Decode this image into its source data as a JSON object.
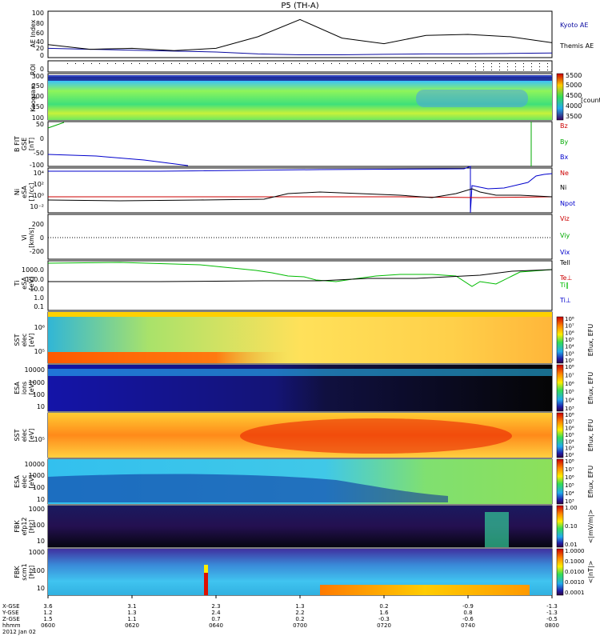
{
  "title": "P5 (TH-A)",
  "colors": {
    "kyoto": "#0a0aa0",
    "themis": "#000000",
    "bz": "#cc0000",
    "by": "#00aa00",
    "bx": "#0000cc",
    "ne": "#cc0000",
    "ni": "#000000",
    "npot": "#0000cc"
  },
  "panels": {
    "ae": {
      "ylabel": "AE Index",
      "ticks": [
        "100",
        "80",
        "60",
        "40",
        "20",
        "0"
      ],
      "legend": [
        "Kyoto AE",
        "Themis AE"
      ]
    },
    "roi": {
      "ylabel": "ROI",
      "ticks": [
        "0"
      ]
    },
    "keogram": {
      "ylabel": "Keogram",
      "ticks": [
        "300",
        "250",
        "200",
        "150",
        "100"
      ],
      "cbar_ticks": [
        "5500",
        "5000",
        "4500",
        "4000",
        "3500"
      ],
      "cbar_label": "[counts]"
    },
    "bfit": {
      "ylabel": "B FIT GSE [nT]",
      "ylabel_lines": [
        "B FIT",
        "GSE",
        "[nT]"
      ],
      "ticks": [
        "50",
        "0",
        "-50",
        "-100"
      ],
      "legend": [
        "Bz",
        "By",
        "Bx"
      ]
    },
    "ni": {
      "ylabel": "Ni eSA [1/cc]",
      "ylabel_lines": [
        "Ni",
        "eSA",
        "[1/cc]"
      ],
      "ticks": [
        "10⁴",
        "10²",
        "10⁰",
        "10⁻²"
      ],
      "legend": [
        "Ne",
        "Ni",
        "Npot"
      ]
    },
    "vi": {
      "ylabel": "Vi [km/s]",
      "ylabel_lines": [
        "Vi",
        "[km/s]"
      ],
      "ticks": [
        "200",
        "0",
        "-200"
      ],
      "legend": [
        "Viz",
        "Viy",
        "Vix"
      ]
    },
    "ti": {
      "ylabel": "Ti eSA [eV]",
      "ylabel_lines": [
        "Ti",
        "eSA",
        "[eV]"
      ],
      "ticks": [
        "1000.0",
        "100.0",
        "10.0",
        "1.0",
        "0.1"
      ],
      "legend": [
        "Tell",
        "Te⊥",
        "Ti‖",
        "Ti⊥"
      ]
    },
    "sst_e": {
      "ylabel": "SST elec [eV]",
      "ylabel_lines": [
        "SST",
        "elec",
        "[eV]"
      ],
      "ticks": [
        "10⁶",
        "10⁵"
      ],
      "cbar_label": "Eflux, EFU",
      "cbar_ticks": [
        "10⁸",
        "10⁷",
        "10⁶",
        "10⁵",
        "10⁴",
        "10³",
        "10²"
      ]
    },
    "esa_i": {
      "ylabel": "ESA ions [eV]",
      "ylabel_lines": [
        "ESA",
        "ions",
        "[eV]"
      ],
      "ticks": [
        "10000",
        "1000",
        "100",
        "10"
      ],
      "cbar_label": "Eflux, EFU",
      "cbar_ticks": [
        "10⁸",
        "10⁷",
        "10⁶",
        "10⁵",
        "10⁴",
        "10³"
      ]
    },
    "sst_i": {
      "ylabel": "SST elec [eV]",
      "ylabel_lines": [
        "SST",
        "elec",
        "[eV]"
      ],
      "ticks": [
        "10⁵"
      ],
      "cbar_label": "Eflux, EFU",
      "cbar_ticks": [
        "10⁸",
        "10⁷",
        "10⁶",
        "10⁵",
        "10⁴",
        "10³",
        "10²"
      ]
    },
    "esa_e": {
      "ylabel": "ESA elec [eV]",
      "ylabel_lines": [
        "ESA",
        "elec",
        "[eV]"
      ],
      "ticks": [
        "10000",
        "1000",
        "100",
        "10"
      ],
      "cbar_label": "Eflux, EFU",
      "cbar_ticks": [
        "10⁸",
        "10⁷",
        "10⁶",
        "10⁵",
        "10⁴",
        "10³"
      ]
    },
    "fbk_e": {
      "ylabel": "FBK efp12 [Hz]",
      "ylabel_lines": [
        "FBK",
        "efp12",
        "[Hz]"
      ],
      "ticks": [
        "1000",
        "100",
        "10"
      ],
      "cbar_label": "<|mV/m|>",
      "cbar_ticks": [
        "1.00",
        "0.10",
        "0.01"
      ]
    },
    "fbk_b": {
      "ylabel": "FBK scm1 [Hz]",
      "ylabel_lines": [
        "FBK",
        "scm1",
        "[Hz]"
      ],
      "ticks": [
        "1000",
        "100",
        "10"
      ],
      "cbar_label": "<|nT|>",
      "cbar_ticks": [
        "1.0000",
        "0.1000",
        "0.0100",
        "0.0010",
        "0.0001"
      ]
    }
  },
  "xaxis": {
    "row_labels": [
      "X-GSE",
      "Y-GSE",
      "Z-GSE",
      "hhmm",
      "2012 Jan 02"
    ],
    "columns": [
      {
        "x": "3.6",
        "y": "1.2",
        "z": "1.5",
        "t": "0600"
      },
      {
        "x": "3.1",
        "y": "1.3",
        "z": "1.1",
        "t": "0620"
      },
      {
        "x": "2.3",
        "y": "2.4",
        "z": "0.7",
        "t": "0640"
      },
      {
        "x": "1.3",
        "y": "2.2",
        "z": "0.2",
        "t": "0700"
      },
      {
        "x": "0.2",
        "y": "1.6",
        "z": "-0.3",
        "t": "0720"
      },
      {
        "x": "-0.9",
        "y": "0.8",
        "z": "-0.6",
        "t": "0740"
      },
      {
        "x": "-1.3",
        "y": "-1.3",
        "z": "-0.5",
        "t": "0800"
      }
    ]
  },
  "chart_data": {
    "type": "line",
    "x": [
      "0600",
      "0610",
      "0620",
      "0630",
      "0640",
      "0650",
      "0700",
      "0710",
      "0720",
      "0730",
      "0740",
      "0750",
      "0800"
    ],
    "series": [
      {
        "name": "Kyoto AE",
        "values": [
          20,
          18,
          16,
          14,
          12,
          8,
          6,
          6,
          7,
          8,
          8,
          9,
          10
        ]
      },
      {
        "name": "Themis AE",
        "values": [
          28,
          18,
          20,
          15,
          20,
          45,
          82,
          42,
          30,
          48,
          50,
          45,
          32
        ]
      }
    ],
    "ylim": [
      0,
      100
    ]
  }
}
